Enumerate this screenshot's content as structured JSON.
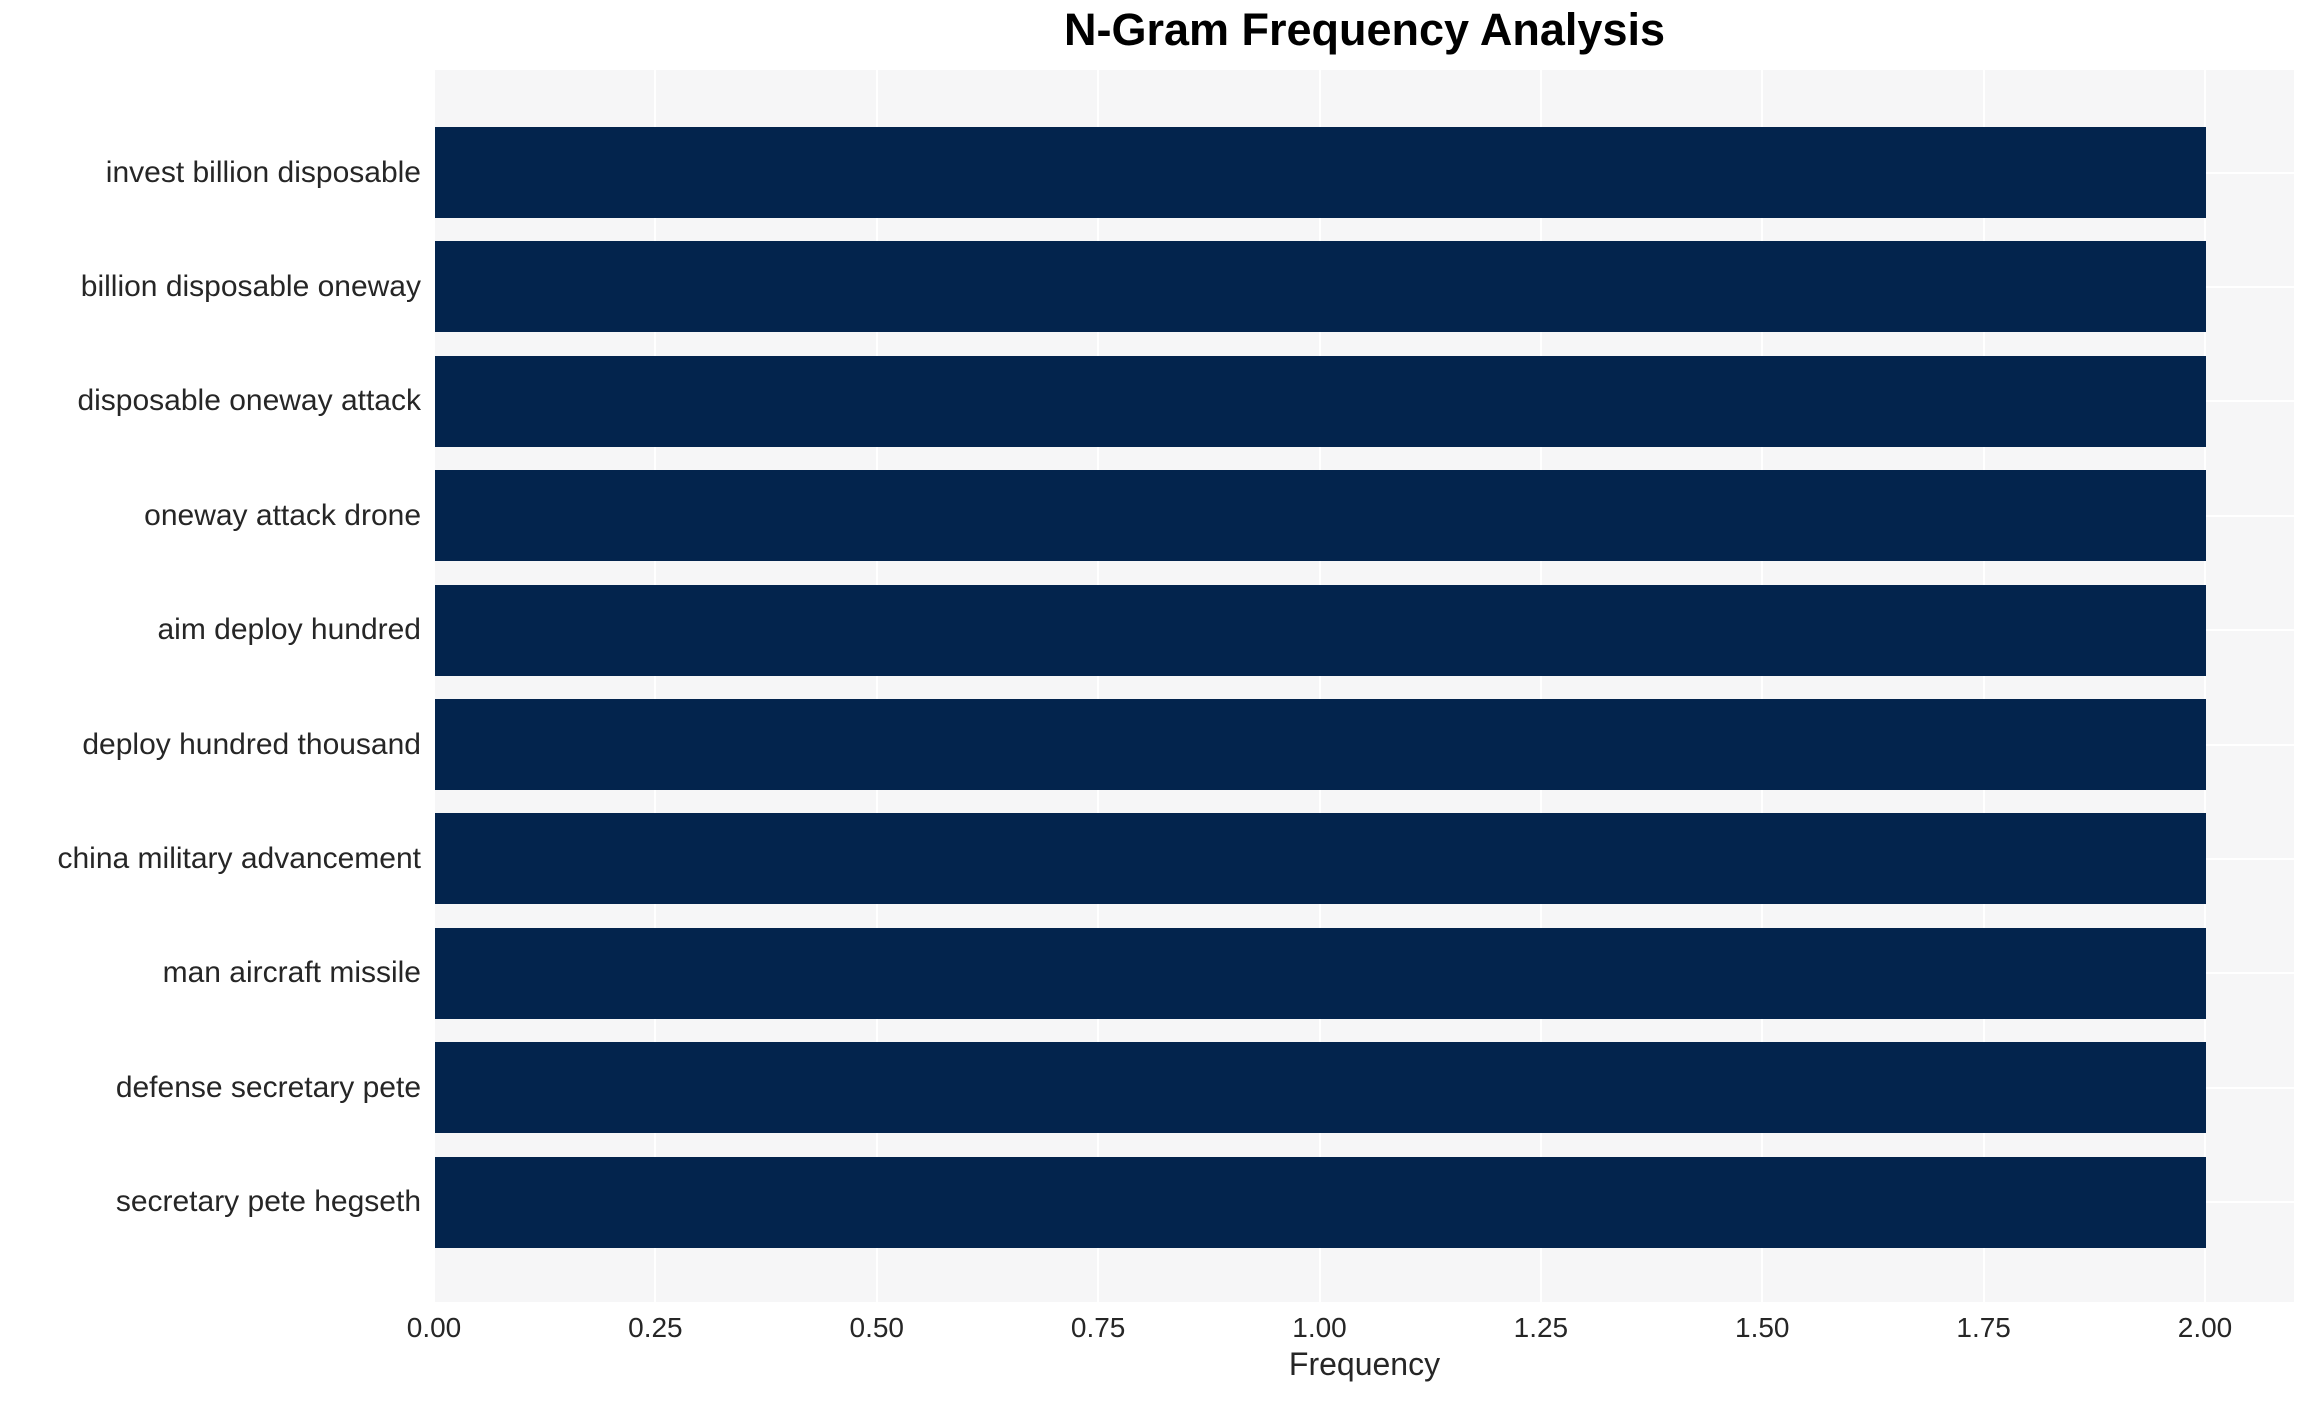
{
  "chart_data": {
    "type": "bar",
    "orientation": "horizontal",
    "title": "N-Gram Frequency Analysis",
    "xlabel": "Frequency",
    "ylabel": "",
    "categories": [
      "invest billion disposable",
      "billion disposable oneway",
      "disposable oneway attack",
      "oneway attack drone",
      "aim deploy hundred",
      "deploy hundred thousand",
      "china military advancement",
      "man aircraft missile",
      "defense secretary pete",
      "secretary pete hegseth"
    ],
    "values": [
      2,
      2,
      2,
      2,
      2,
      2,
      2,
      2,
      2,
      2
    ],
    "xlim": [
      0,
      2.105
    ],
    "xtick_values": [
      0,
      0.25,
      0.5,
      0.75,
      1.0,
      1.25,
      1.5,
      1.75,
      2.0
    ],
    "xtick_labels": [
      "0.00",
      "0.25",
      "0.50",
      "0.75",
      "1.00",
      "1.25",
      "1.50",
      "1.75",
      "2.00"
    ],
    "grid": "on",
    "legend": false,
    "colors": {
      "bar": "#03244d",
      "plot_background": "#f6f6f7",
      "gridline": "#ffffff",
      "tick_text": "#262626",
      "title_text": "#000000"
    }
  }
}
